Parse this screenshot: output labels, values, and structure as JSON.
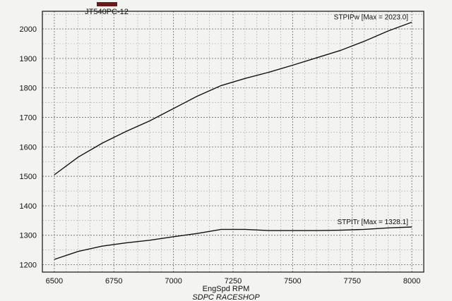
{
  "chart_data": {
    "type": "line",
    "legend": "JT540PC-12",
    "legend_color": "#6b1a1a",
    "xlabel": "EngSpd RPM",
    "ylabel": "",
    "footer": "SDPC RACESHOP",
    "xlim": [
      6450,
      8050
    ],
    "ylim": [
      1175,
      2060
    ],
    "xticks": [
      6500,
      6750,
      7000,
      7250,
      7500,
      7750,
      8000
    ],
    "yticks": [
      1200,
      1300,
      1400,
      1500,
      1600,
      1700,
      1800,
      1900,
      2000
    ],
    "grid": true,
    "series": [
      {
        "name": "STPIPw",
        "label": "STPIPw [Max = 2023.0]",
        "color": "#111111",
        "x": [
          6500,
          6600,
          6700,
          6800,
          6900,
          7000,
          7100,
          7200,
          7300,
          7400,
          7500,
          7600,
          7700,
          7800,
          7900,
          8000
        ],
        "y": [
          1505,
          1565,
          1612,
          1652,
          1688,
          1730,
          1772,
          1808,
          1832,
          1853,
          1877,
          1902,
          1927,
          1958,
          1993,
          2023
        ]
      },
      {
        "name": "STPITr",
        "label": "STPITr [Max = 1328.1]",
        "color": "#111111",
        "x": [
          6500,
          6600,
          6700,
          6800,
          6900,
          7000,
          7100,
          7200,
          7300,
          7400,
          7500,
          7600,
          7700,
          7800,
          7900,
          8000
        ],
        "y": [
          1218,
          1245,
          1263,
          1274,
          1283,
          1295,
          1306,
          1320,
          1320,
          1316,
          1316,
          1316,
          1317,
          1320,
          1325,
          1328
        ]
      }
    ]
  }
}
